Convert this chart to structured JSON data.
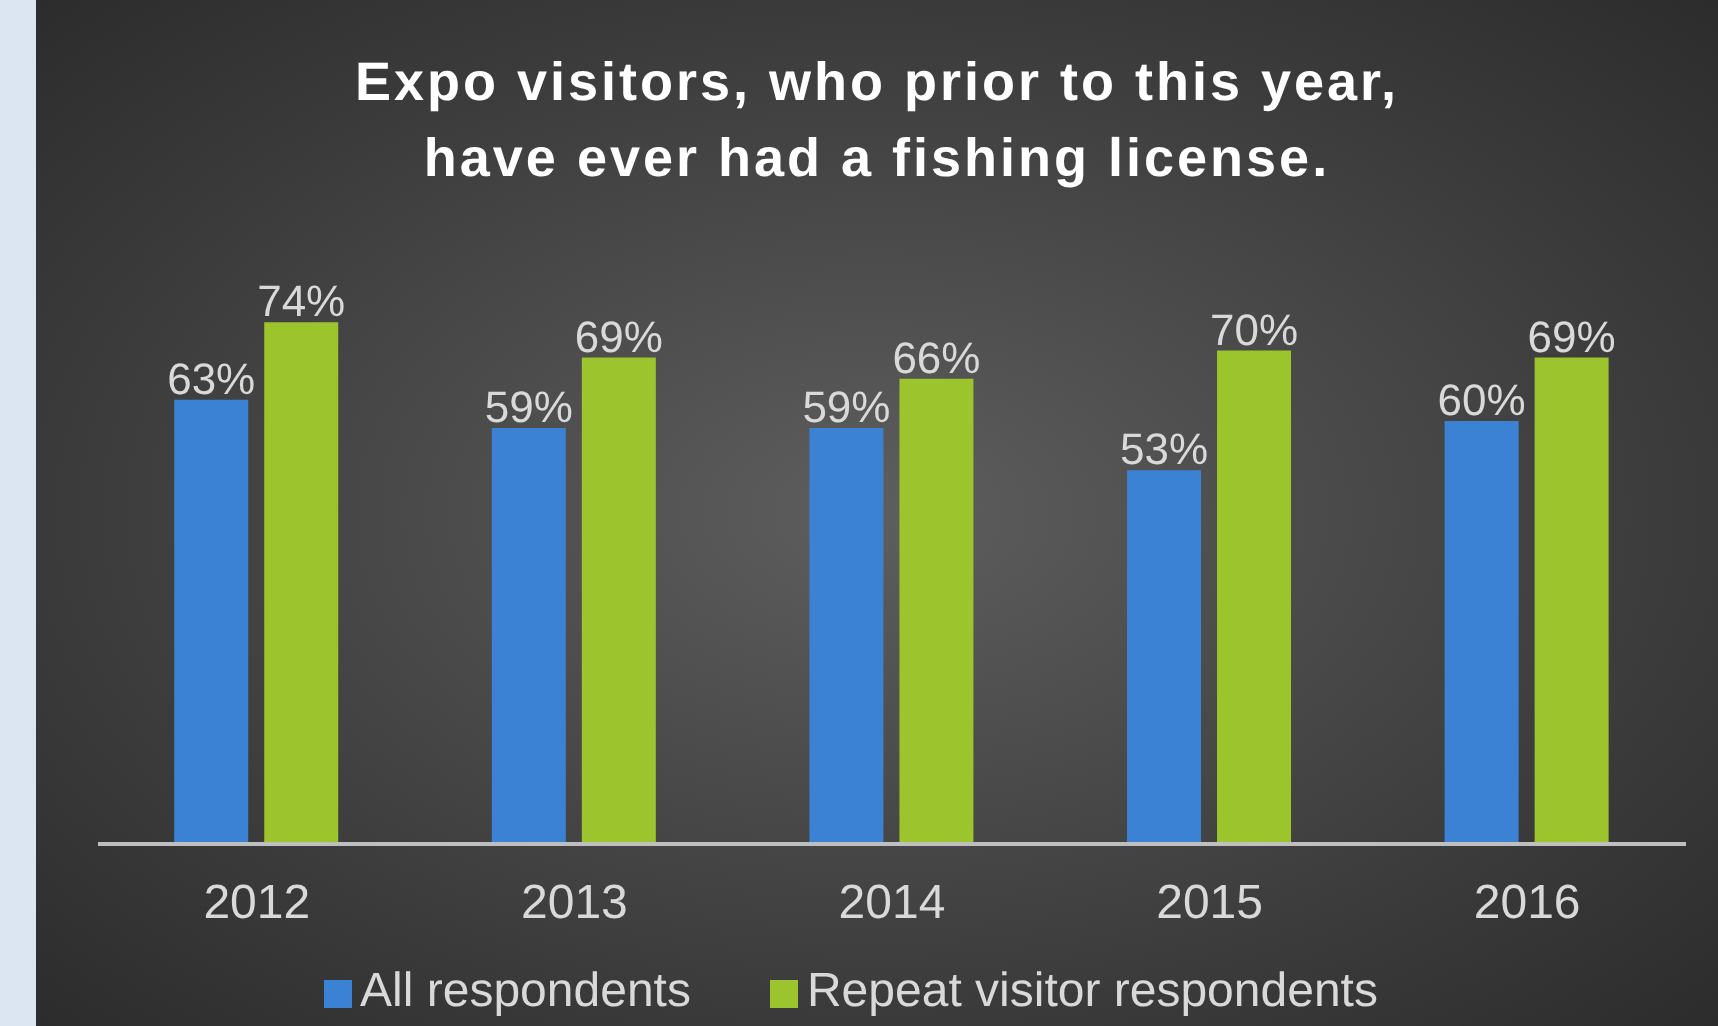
{
  "chart_data": {
    "type": "bar",
    "title": "Expo visitors, who prior to this year,\nhave ever had a fishing license.",
    "categories": [
      "2012",
      "2013",
      "2014",
      "2015",
      "2016"
    ],
    "series": [
      {
        "name": "All respondents",
        "color": "#3c82d4",
        "values": [
          63,
          59,
          59,
          53,
          60
        ],
        "value_labels": [
          "63%",
          "59%",
          "59%",
          "53%",
          "60%"
        ]
      },
      {
        "name": "Repeat visitor respondents",
        "color": "#9cc42c",
        "values": [
          74,
          69,
          66,
          70,
          69
        ],
        "value_labels": [
          "74%",
          "69%",
          "66%",
          "70%",
          "69%"
        ]
      }
    ],
    "tick_labels": "x",
    "legend": "bottom"
  }
}
